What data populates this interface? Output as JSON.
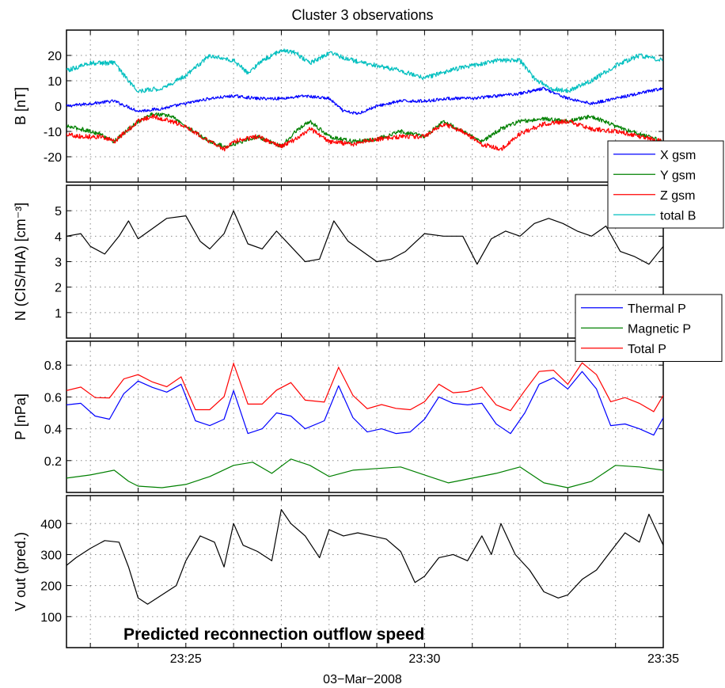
{
  "chart_data": {
    "title": "Cluster 3 observations",
    "type": "line",
    "xlabel": "03−Mar−2008",
    "xlim": [
      22.5,
      35
    ],
    "x_ticks": [
      {
        "x": 25,
        "label": "23:25"
      },
      {
        "x": 30,
        "label": "23:30"
      },
      {
        "x": 35,
        "label": "23:35"
      }
    ],
    "panels": [
      {
        "ylabel": "B  [nT]",
        "ylim": [
          -30,
          30
        ],
        "yticks": [
          -20,
          -10,
          0,
          10,
          20
        ],
        "grid": true,
        "legend": {
          "placement": "right",
          "entries": [
            "X gsm",
            "Y gsm",
            "Z gsm",
            "total B"
          ]
        },
        "series": [
          {
            "name": "X gsm",
            "color": "#0000ff",
            "noise": 0.6,
            "x": [
              22.5,
              23.0,
              23.5,
              24.0,
              24.5,
              25.0,
              25.5,
              26.0,
              26.5,
              27.0,
              27.5,
              28.0,
              28.3,
              28.6,
              29.0,
              29.5,
              30.0,
              30.5,
              31.0,
              31.5,
              32.0,
              32.5,
              33.0,
              33.5,
              34.0,
              34.5,
              35.0
            ],
            "values": [
              0,
              1,
              2,
              -2,
              -1,
              1,
              3,
              4,
              3,
              3,
              4,
              3,
              -2,
              -3,
              0,
              2,
              2,
              3,
              3,
              4,
              5,
              7,
              3,
              1,
              3,
              5,
              7
            ]
          },
          {
            "name": "Y gsm",
            "color": "#008000",
            "noise": 0.8,
            "x": [
              22.5,
              22.8,
              23.2,
              23.5,
              24.0,
              24.3,
              24.7,
              25.0,
              25.5,
              25.8,
              26.0,
              26.5,
              27.0,
              27.3,
              27.6,
              28.0,
              28.5,
              29.0,
              29.5,
              30.0,
              30.4,
              30.8,
              31.2,
              31.6,
              32.0,
              32.5,
              33.0,
              33.5,
              34.0,
              34.5,
              35.0
            ],
            "values": [
              -8,
              -9,
              -11,
              -14,
              -6,
              -3,
              -4,
              -8,
              -14,
              -16,
              -15,
              -12,
              -16,
              -10,
              -6,
              -12,
              -14,
              -13,
              -10,
              -12,
              -6,
              -10,
              -14,
              -9,
              -6,
              -5,
              -6,
              -4,
              -8,
              -11,
              -14
            ]
          },
          {
            "name": "Z gsm",
            "color": "#ff0000",
            "noise": 0.9,
            "x": [
              22.5,
              22.8,
              23.2,
              23.5,
              24.0,
              24.3,
              24.7,
              25.0,
              25.5,
              25.8,
              26.0,
              26.5,
              27.0,
              27.3,
              27.6,
              28.0,
              28.5,
              29.0,
              29.5,
              30.0,
              30.4,
              30.8,
              31.2,
              31.6,
              32.0,
              32.5,
              33.0,
              33.5,
              34.0,
              34.5,
              35.0
            ],
            "values": [
              -11,
              -12,
              -12,
              -14,
              -6,
              -4,
              -6,
              -8,
              -14,
              -17,
              -14,
              -12,
              -16,
              -13,
              -9,
              -14,
              -15,
              -13,
              -12,
              -12,
              -7,
              -10,
              -15,
              -17,
              -11,
              -7,
              -6,
              -9,
              -10,
              -12,
              -14
            ]
          },
          {
            "name": "total B",
            "color": "#00bfbf",
            "noise": 0.9,
            "x": [
              22.5,
              23.0,
              23.5,
              23.8,
              24.0,
              24.5,
              25.0,
              25.5,
              26.0,
              26.3,
              26.6,
              27.0,
              27.3,
              27.6,
              28.0,
              28.5,
              29.0,
              29.5,
              30.0,
              30.5,
              31.0,
              31.5,
              32.0,
              32.3,
              32.6,
              33.0,
              33.5,
              34.0,
              34.5,
              35.0
            ],
            "values": [
              14,
              17,
              17,
              10,
              6,
              7,
              12,
              20,
              18,
              13,
              18,
              22,
              21,
              17,
              21,
              18,
              16,
              14,
              11,
              14,
              16,
              18,
              18,
              11,
              7,
              6,
              10,
              16,
              20,
              18
            ]
          }
        ]
      },
      {
        "ylabel": "N (CIS/HIA)  [cm⁻³]",
        "ylim": [
          0,
          6
        ],
        "yticks": [
          1,
          2,
          3,
          4,
          5
        ],
        "grid": true,
        "series": [
          {
            "name": "",
            "color": "#000000",
            "noise": 0.12,
            "x": [
              22.5,
              22.8,
              23.0,
              23.3,
              23.6,
              23.8,
              24.0,
              24.3,
              24.6,
              25.0,
              25.3,
              25.5,
              25.8,
              26.0,
              26.3,
              26.6,
              26.9,
              27.2,
              27.5,
              27.8,
              28.1,
              28.4,
              28.7,
              29.0,
              29.3,
              29.6,
              30.0,
              30.4,
              30.8,
              31.1,
              31.4,
              31.7,
              32.0,
              32.3,
              32.6,
              32.9,
              33.2,
              33.5,
              33.8,
              34.1,
              34.4,
              34.7,
              35.0
            ],
            "values": [
              4.0,
              4.1,
              3.6,
              3.3,
              4.0,
              4.6,
              3.9,
              4.3,
              4.7,
              4.8,
              3.8,
              3.5,
              4.1,
              5.0,
              3.7,
              3.5,
              4.2,
              3.6,
              3.0,
              3.1,
              4.6,
              3.8,
              3.4,
              3.0,
              3.1,
              3.4,
              4.1,
              4.0,
              4.0,
              2.9,
              3.9,
              4.2,
              4.0,
              4.5,
              4.7,
              4.5,
              4.2,
              4.0,
              4.4,
              3.4,
              3.2,
              2.9,
              3.6
            ]
          }
        ]
      },
      {
        "ylabel": "P  [nPa]",
        "ylim": [
          0,
          0.95
        ],
        "yticks": [
          0.2,
          0.4,
          0.6,
          0.8
        ],
        "grid": true,
        "legend": {
          "placement": "top-right",
          "entries": [
            "Thermal P",
            "Magnetic P",
            "Total P"
          ]
        },
        "series": [
          {
            "name": "Thermal P",
            "color": "#0000ff",
            "noise": 0.015,
            "x": [
              22.5,
              22.8,
              23.1,
              23.4,
              23.7,
              24.0,
              24.3,
              24.6,
              24.9,
              25.2,
              25.5,
              25.8,
              26.0,
              26.3,
              26.6,
              26.9,
              27.2,
              27.5,
              27.9,
              28.2,
              28.5,
              28.8,
              29.1,
              29.4,
              29.7,
              30.0,
              30.3,
              30.6,
              30.9,
              31.2,
              31.5,
              31.8,
              32.1,
              32.4,
              32.7,
              33.0,
              33.3,
              33.6,
              33.9,
              34.2,
              34.5,
              34.8,
              35.0
            ],
            "values": [
              0.55,
              0.56,
              0.48,
              0.46,
              0.62,
              0.7,
              0.66,
              0.63,
              0.68,
              0.45,
              0.42,
              0.46,
              0.64,
              0.37,
              0.4,
              0.5,
              0.48,
              0.4,
              0.45,
              0.67,
              0.47,
              0.38,
              0.4,
              0.37,
              0.38,
              0.46,
              0.6,
              0.56,
              0.55,
              0.56,
              0.43,
              0.37,
              0.5,
              0.68,
              0.72,
              0.65,
              0.76,
              0.65,
              0.42,
              0.43,
              0.4,
              0.36,
              0.47
            ]
          },
          {
            "name": "Magnetic P",
            "color": "#008000",
            "noise": 0.006,
            "x": [
              22.5,
              23.0,
              23.5,
              23.8,
              24.0,
              24.5,
              25.0,
              25.5,
              26.0,
              26.4,
              26.8,
              27.2,
              27.6,
              28.0,
              28.5,
              29.0,
              29.5,
              30.0,
              30.5,
              31.0,
              31.5,
              32.0,
              32.5,
              33.0,
              33.5,
              34.0,
              34.5,
              35.0
            ],
            "values": [
              0.09,
              0.11,
              0.14,
              0.07,
              0.04,
              0.03,
              0.05,
              0.1,
              0.17,
              0.19,
              0.12,
              0.21,
              0.17,
              0.1,
              0.14,
              0.15,
              0.16,
              0.11,
              0.06,
              0.09,
              0.12,
              0.16,
              0.06,
              0.03,
              0.07,
              0.17,
              0.16,
              0.14
            ]
          }
        ],
        "total_series": {
          "name": "Total P",
          "color": "#ff0000"
        }
      },
      {
        "ylabel": "V out (pred.)",
        "ylim": [
          0,
          490
        ],
        "yticks": [
          100,
          200,
          300,
          400
        ],
        "grid": true,
        "annotation": "Predicted reconnection outflow speed",
        "series": [
          {
            "name": "",
            "color": "#000000",
            "noise": 5,
            "x": [
              22.5,
              22.7,
              23.0,
              23.3,
              23.6,
              23.8,
              24.0,
              24.2,
              24.5,
              24.8,
              25.0,
              25.3,
              25.6,
              25.8,
              26.0,
              26.2,
              26.5,
              26.8,
              27.0,
              27.2,
              27.5,
              27.8,
              28.0,
              28.3,
              28.6,
              28.9,
              29.2,
              29.5,
              29.8,
              30.0,
              30.3,
              30.6,
              30.9,
              31.2,
              31.4,
              31.6,
              31.9,
              32.2,
              32.5,
              32.8,
              33.0,
              33.3,
              33.6,
              33.9,
              34.2,
              34.5,
              34.7,
              35.0
            ],
            "values": [
              265,
              290,
              320,
              345,
              340,
              260,
              160,
              140,
              170,
              200,
              280,
              360,
              340,
              260,
              400,
              330,
              310,
              280,
              445,
              400,
              360,
              290,
              380,
              360,
              370,
              360,
              350,
              310,
              210,
              230,
              290,
              300,
              280,
              360,
              300,
              400,
              300,
              250,
              180,
              160,
              170,
              220,
              250,
              310,
              370,
              340,
              430,
              330
            ]
          }
        ]
      }
    ]
  }
}
